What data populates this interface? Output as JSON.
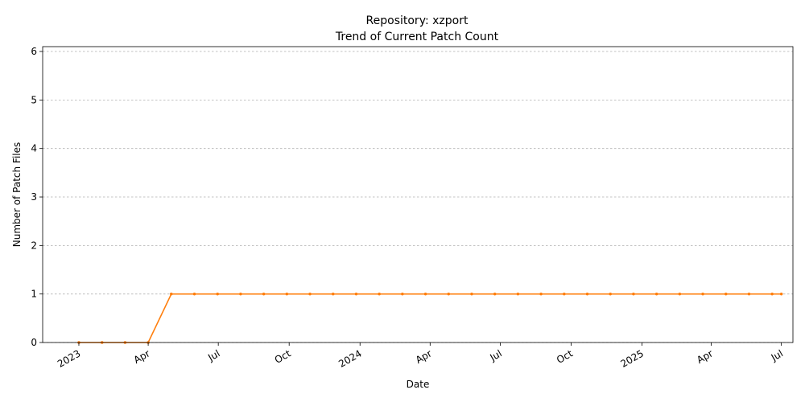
{
  "chart_data": {
    "type": "line",
    "title": "Repository: xzport",
    "subtitle": "Trend of Current Patch Count",
    "xlabel": "Date",
    "ylabel": "Number of Patch Files",
    "ylim": [
      0,
      6.1
    ],
    "yticks": [
      0,
      1,
      2,
      3,
      4,
      5,
      6
    ],
    "xlim": [
      "2022-11-15",
      "2025-07-16"
    ],
    "xticks": [
      {
        "date": "2023-01-01",
        "label": "2023"
      },
      {
        "date": "2023-04-01",
        "label": "Apr"
      },
      {
        "date": "2023-07-01",
        "label": "Jul"
      },
      {
        "date": "2023-10-01",
        "label": "Oct"
      },
      {
        "date": "2024-01-01",
        "label": "2024"
      },
      {
        "date": "2024-04-01",
        "label": "Apr"
      },
      {
        "date": "2024-07-01",
        "label": "Jul"
      },
      {
        "date": "2024-10-01",
        "label": "Oct"
      },
      {
        "date": "2025-01-01",
        "label": "2025"
      },
      {
        "date": "2025-04-01",
        "label": "Apr"
      },
      {
        "date": "2025-07-01",
        "label": "Jul"
      }
    ],
    "grid": "y",
    "series": [
      {
        "color": "#ff7f0e",
        "marker": "dot",
        "points": [
          {
            "x": "2023-01-01",
            "y": 0
          },
          {
            "x": "2023-01-31",
            "y": 0
          },
          {
            "x": "2023-03-02",
            "y": 0
          },
          {
            "x": "2023-04-01",
            "y": 0
          },
          {
            "x": "2023-05-01",
            "y": 1
          },
          {
            "x": "2023-05-31",
            "y": 1
          },
          {
            "x": "2023-06-30",
            "y": 1
          },
          {
            "x": "2023-07-30",
            "y": 1
          },
          {
            "x": "2023-08-29",
            "y": 1
          },
          {
            "x": "2023-09-28",
            "y": 1
          },
          {
            "x": "2023-10-28",
            "y": 1
          },
          {
            "x": "2023-11-27",
            "y": 1
          },
          {
            "x": "2023-12-27",
            "y": 1
          },
          {
            "x": "2024-01-26",
            "y": 1
          },
          {
            "x": "2024-02-25",
            "y": 1
          },
          {
            "x": "2024-03-26",
            "y": 1
          },
          {
            "x": "2024-04-25",
            "y": 1
          },
          {
            "x": "2024-05-25",
            "y": 1
          },
          {
            "x": "2024-06-24",
            "y": 1
          },
          {
            "x": "2024-07-24",
            "y": 1
          },
          {
            "x": "2024-08-23",
            "y": 1
          },
          {
            "x": "2024-09-22",
            "y": 1
          },
          {
            "x": "2024-10-22",
            "y": 1
          },
          {
            "x": "2024-11-21",
            "y": 1
          },
          {
            "x": "2024-12-21",
            "y": 1
          },
          {
            "x": "2025-01-20",
            "y": 1
          },
          {
            "x": "2025-02-19",
            "y": 1
          },
          {
            "x": "2025-03-21",
            "y": 1
          },
          {
            "x": "2025-04-20",
            "y": 1
          },
          {
            "x": "2025-05-20",
            "y": 1
          },
          {
            "x": "2025-06-19",
            "y": 1
          },
          {
            "x": "2025-07-01",
            "y": 1
          }
        ]
      }
    ]
  }
}
